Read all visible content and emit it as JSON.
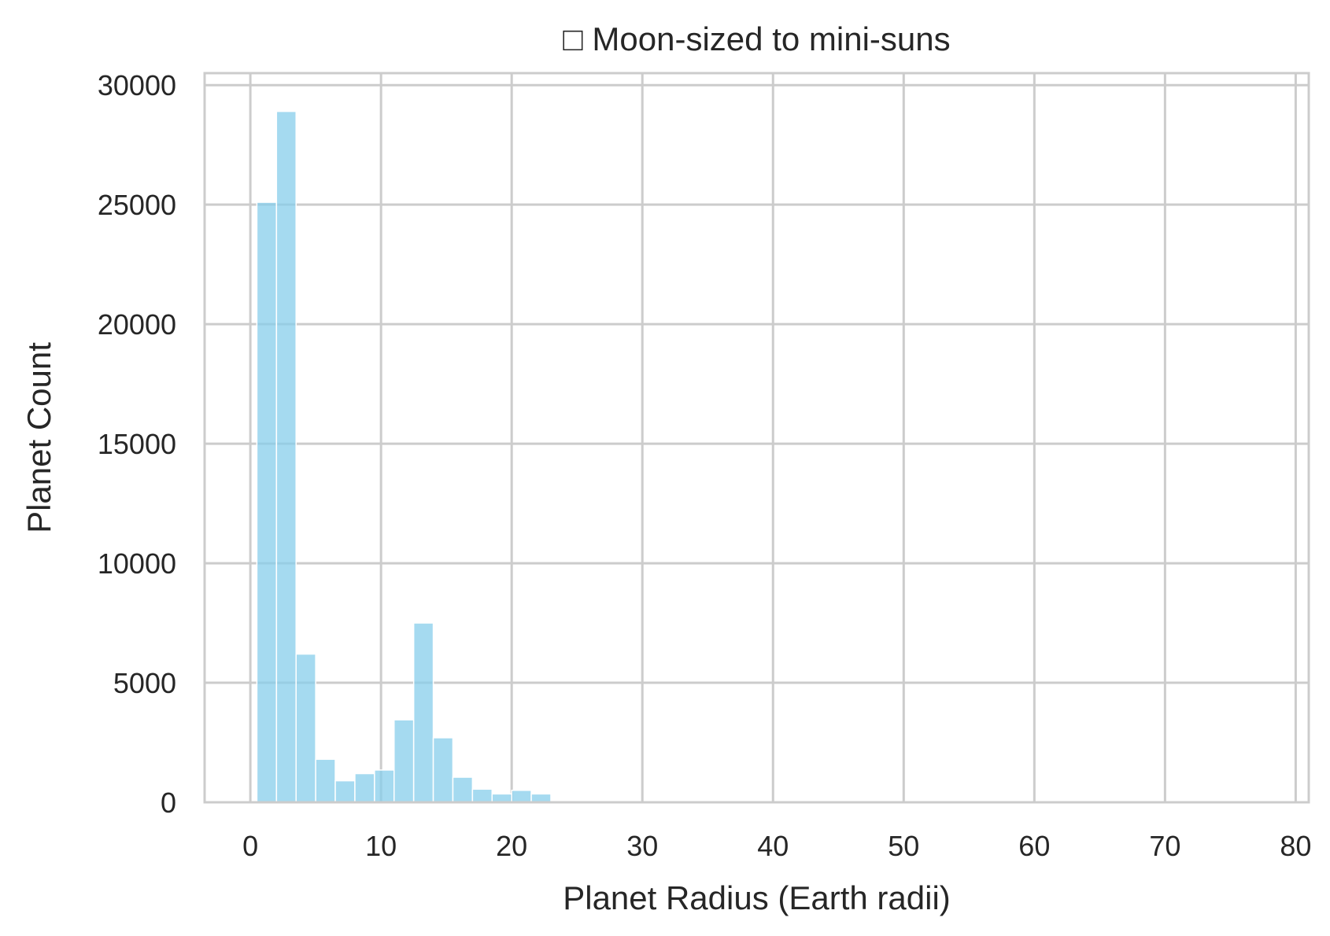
{
  "chart_data": {
    "type": "bar",
    "title": "□ Moon-sized to mini-suns",
    "xlabel": "Planet Radius (Earth radii)",
    "ylabel": "Planet Count",
    "xlim": [
      -3.5,
      81
    ],
    "ylim": [
      0,
      30500
    ],
    "xticks": [
      0,
      10,
      20,
      30,
      40,
      50,
      60,
      70,
      80
    ],
    "yticks": [
      0,
      5000,
      10000,
      15000,
      20000,
      25000,
      30000
    ],
    "grid": true,
    "bar_color": "#87ceeb",
    "bin_width": 1.5,
    "bins": [
      {
        "x0": 0.5,
        "count": 25100
      },
      {
        "x0": 2.0,
        "count": 28900
      },
      {
        "x0": 3.5,
        "count": 6200
      },
      {
        "x0": 5.0,
        "count": 1800
      },
      {
        "x0": 6.5,
        "count": 900
      },
      {
        "x0": 8.0,
        "count": 1200
      },
      {
        "x0": 9.5,
        "count": 1350
      },
      {
        "x0": 11.0,
        "count": 3450
      },
      {
        "x0": 12.5,
        "count": 7500
      },
      {
        "x0": 14.0,
        "count": 2700
      },
      {
        "x0": 15.5,
        "count": 1050
      },
      {
        "x0": 17.0,
        "count": 550
      },
      {
        "x0": 18.5,
        "count": 350
      },
      {
        "x0": 20.0,
        "count": 500
      },
      {
        "x0": 21.5,
        "count": 350
      },
      {
        "x0": 23.0,
        "count": 20
      },
      {
        "x0": 24.5,
        "count": 10
      },
      {
        "x0": 26.0,
        "count": 5
      },
      {
        "x0": 27.5,
        "count": 5
      },
      {
        "x0": 29.0,
        "count": 3
      }
    ]
  }
}
